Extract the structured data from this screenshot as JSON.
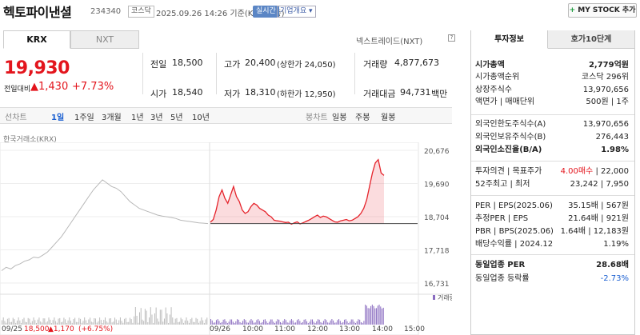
{
  "header": {
    "name": "헥토파이낸셜",
    "code": "234340",
    "market": "코스닥",
    "date": "2025.09.26 14:26  기준(KRX 장중)",
    "realtime": "실시간",
    "company_info": "기업개요 ▾",
    "mystock": "MY STOCK 추가",
    "mystock_plus": "+"
  },
  "quote": {
    "tabs": [
      "KRX",
      "NXT"
    ],
    "nxt_label": "넥스트레이드(NXT)",
    "help": "?",
    "price": "19,930",
    "change_label": "전일대비",
    "change": "▲1,430",
    "change_pct": "+7.73%",
    "prev_label": "전일",
    "prev": "18,500",
    "high_label": "고가",
    "high": "20,400",
    "upper_limit": "(상한가 24,050)",
    "volume_label": "거래량",
    "volume": "4,877,673",
    "open_label": "시가",
    "open": "18,540",
    "low_label": "저가",
    "low": "18,310",
    "lower_limit": "(하한가 12,950)",
    "amount_label": "거래대금",
    "amount": "94,731",
    "amount_unit": "백만"
  },
  "periods": {
    "left": [
      "선차트",
      "1일",
      "1주일",
      "3개월",
      "1년",
      "3년",
      "5년",
      "10년"
    ],
    "right": [
      "봉차트",
      "일봉",
      "주봉",
      "월봉"
    ]
  },
  "chart_label": "한국거래소(KRX)",
  "chart_data": {
    "type": "line",
    "y_ticks": [
      "20,676",
      "19,690",
      "18,704",
      "17,718",
      "16,731"
    ],
    "ylim": [
      16731,
      20676
    ],
    "x_ticks": [
      "09/25",
      "09/26",
      "10:00",
      "11:00",
      "12:00",
      "13:00",
      "14:00",
      "15:00"
    ],
    "baseline": 18500,
    "volume_label": "거래량",
    "prev_day_summary": {
      "date": "09/25",
      "close": "18,500",
      "change": "▲1,170",
      "change_pct": "(+6.75%)"
    },
    "prev_day_series": [
      17100,
      17200,
      17150,
      17250,
      17300,
      17380,
      17420,
      17500,
      17480,
      17560,
      17650,
      17800,
      17950,
      18100,
      18300,
      18500,
      18700,
      18900,
      19100,
      19300,
      19500,
      19650,
      19800,
      19700,
      19600,
      19550,
      19450,
      19300,
      19150,
      19050,
      18950,
      18900,
      18850,
      18800,
      18750,
      18720,
      18700,
      18680,
      18650,
      18600,
      18580,
      18560,
      18540,
      18520,
      18510,
      18500
    ],
    "today_series": [
      18540,
      18620,
      18900,
      19300,
      19500,
      19250,
      19100,
      19350,
      19600,
      19300,
      19150,
      18900,
      18800,
      18850,
      19000,
      19100,
      19050,
      18950,
      18900,
      18850,
      18750,
      18700,
      18600,
      18580,
      18570,
      18550,
      18530,
      18540,
      18480,
      18520,
      18550,
      18490,
      18520,
      18560,
      18600,
      18650,
      18700,
      18750,
      18680,
      18720,
      18700,
      18650,
      18600,
      18550,
      18540,
      18580,
      18600,
      18620,
      18580,
      18600,
      18650,
      18700,
      18800,
      18950,
      19200,
      19600,
      20000,
      20300,
      20400,
      20000,
      19930
    ]
  },
  "invest": {
    "tabs": [
      "투자정보",
      "호가10단계"
    ],
    "market_cap_label": "시가총액",
    "market_cap": "2,779억원",
    "rank_label": "시가총액순위",
    "rank": "코스닥 296위",
    "shares_label": "상장주식수",
    "shares": "13,970,656",
    "face_label": "액면가 | 매매단위",
    "face": "500원 | 1주",
    "foreign_limit_label": "외국인한도주식수(A)",
    "foreign_limit": "13,970,656",
    "foreign_hold_label": "외국인보유주식수(B)",
    "foreign_hold": "276,443",
    "foreign_ratio_label": "외국인소진율(B/A)",
    "foreign_ratio": "1.98%",
    "opinion_label": "투자의견 | 목표주가",
    "opinion": "4.00매수",
    "target": "| 22,000",
    "w52_label": "52주최고 | 최저",
    "w52": "23,242 | 7,950",
    "per_label": "PER | EPS(2025.06)",
    "per": "35.15배 | 567원",
    "est_per_label": "추정PER | EPS",
    "est_per": "21.64배 | 921원",
    "pbr_label": "PBR | BPS(2025.06)",
    "pbr": "1.64배 | 12,183원",
    "div_label": "배당수익률 | 2024.12",
    "div": "1.19%",
    "sector_per_label": "동일업종 PER",
    "sector_per": "28.68배",
    "sector_chg_label": "동일업종 등락률",
    "sector_chg": "-2.73%"
  }
}
